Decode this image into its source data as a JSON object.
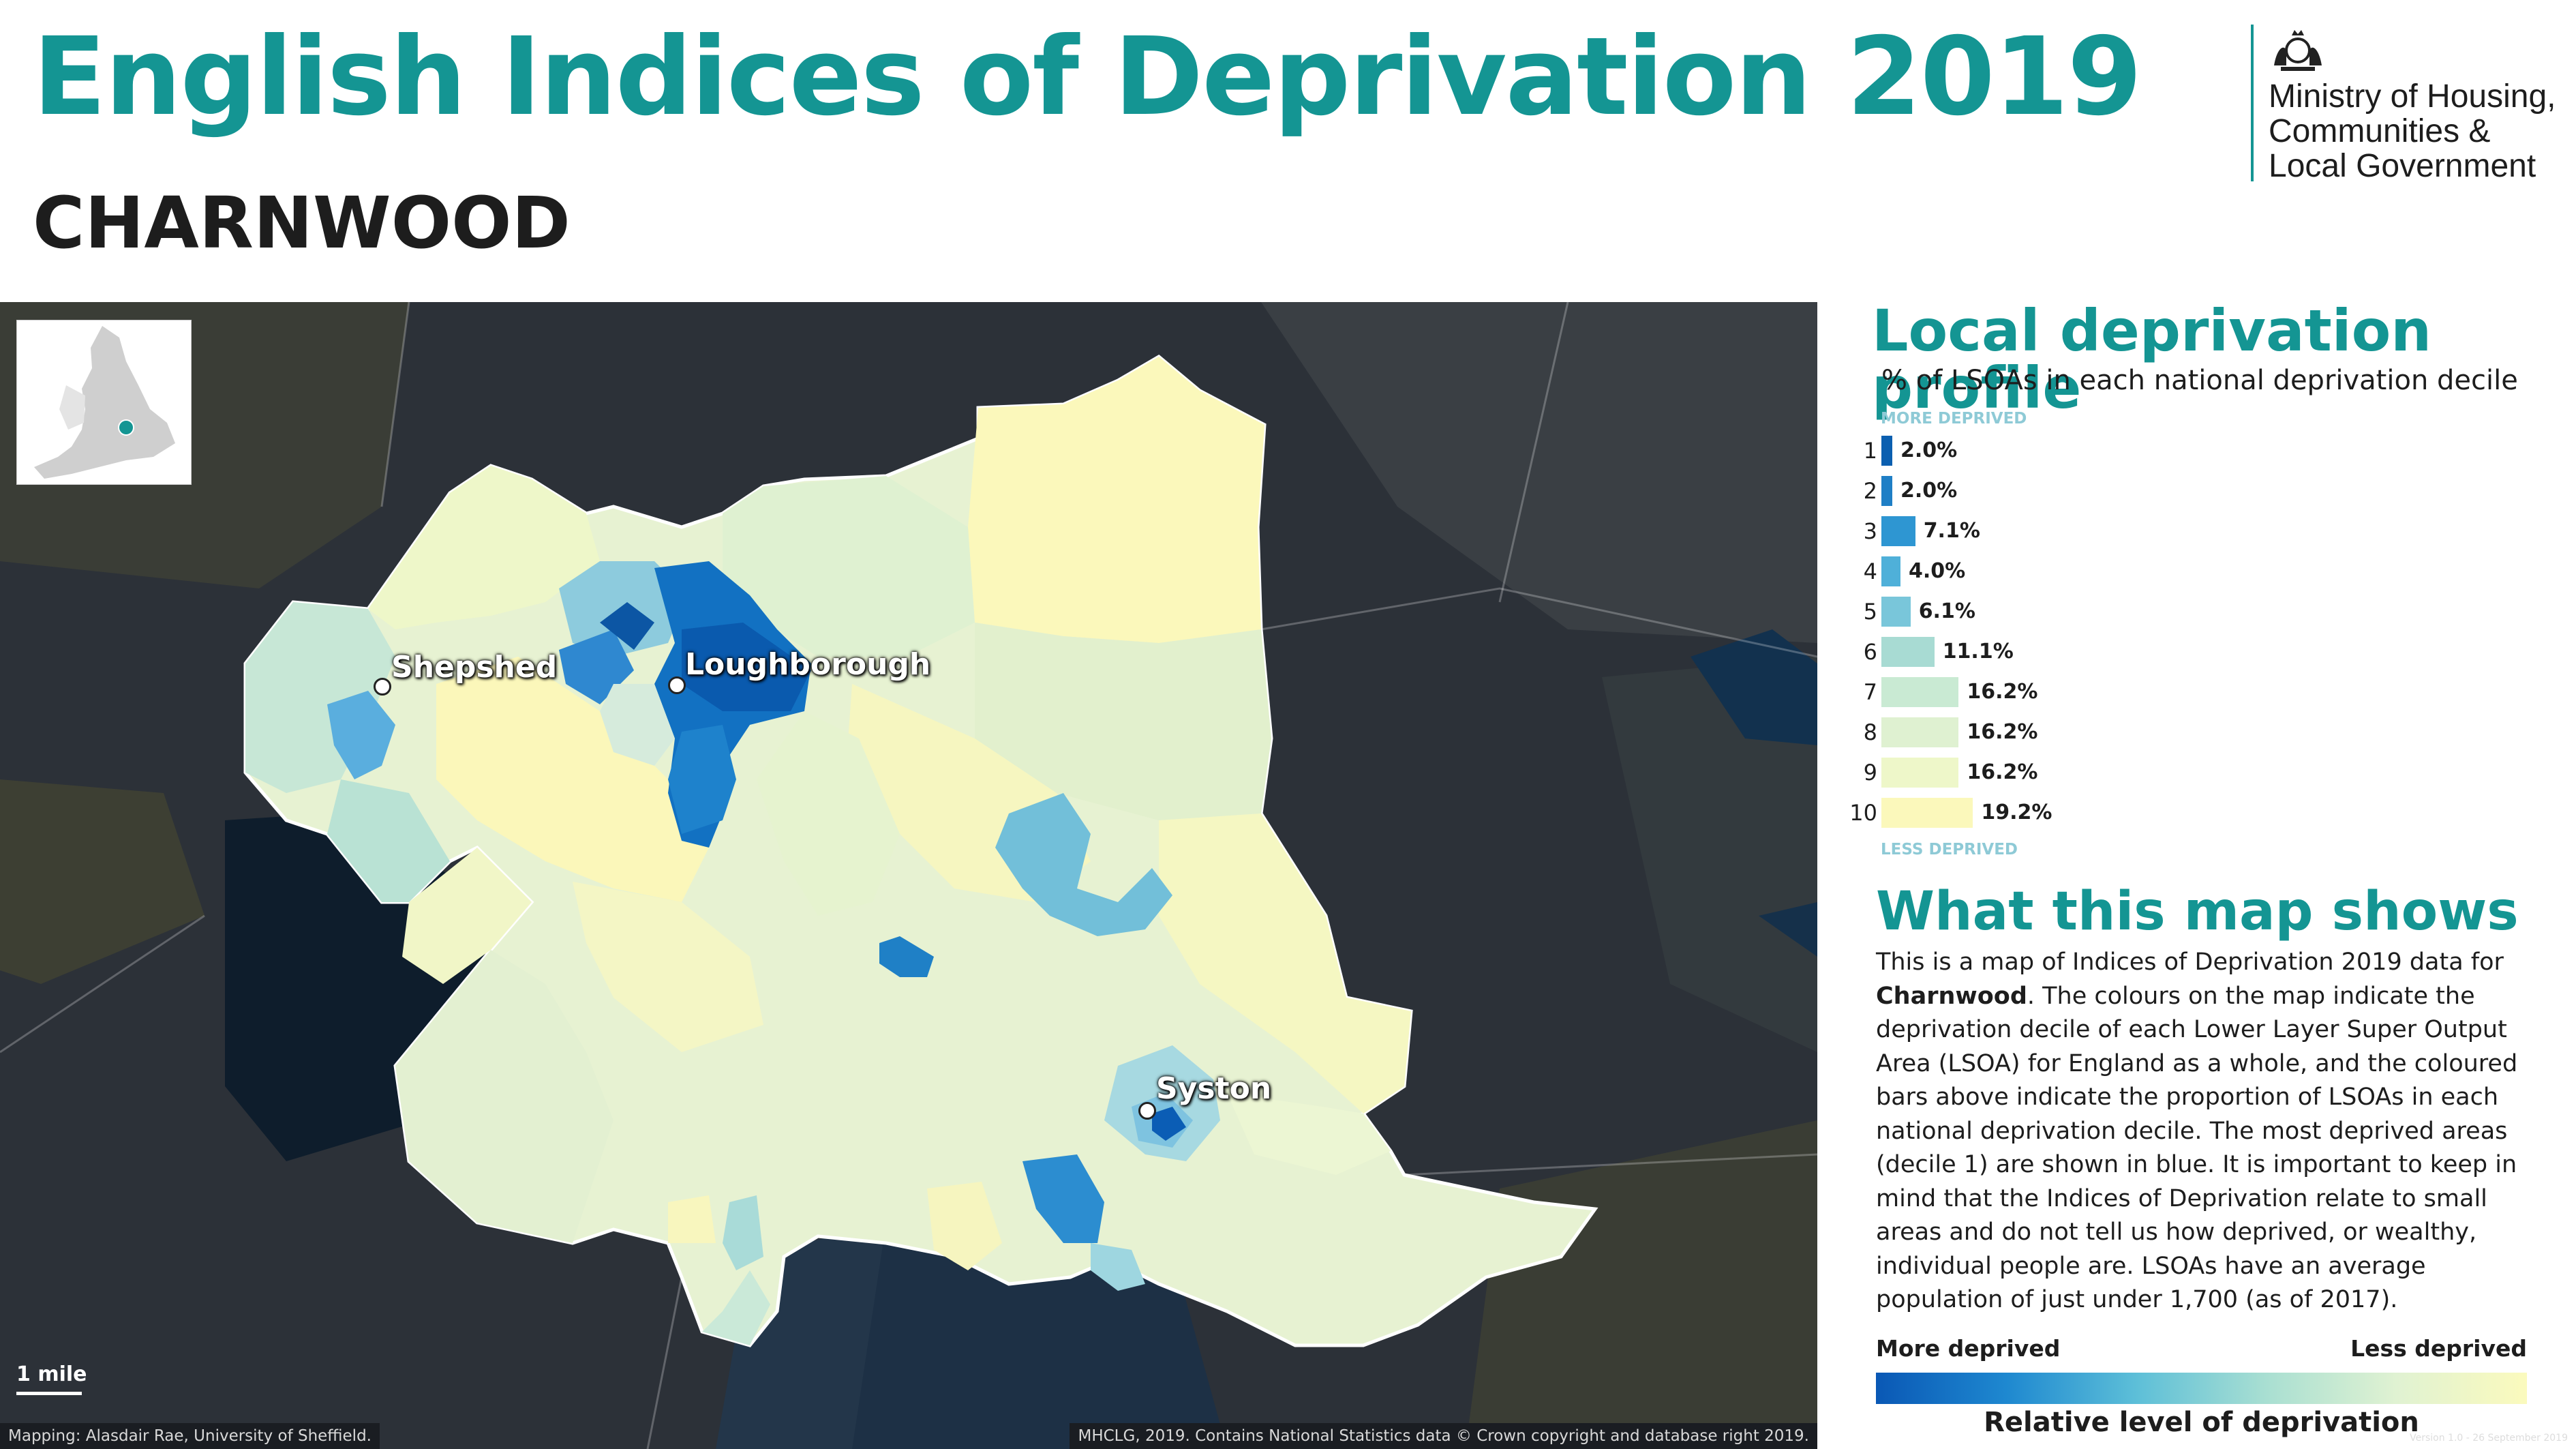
{
  "header": {
    "title": "English Indices of Deprivation 2019",
    "district": "CHARNWOOD",
    "org_lines": [
      "Ministry of Housing,",
      "Communities &",
      "Local Government"
    ]
  },
  "map": {
    "places": [
      {
        "name": "Shepshed"
      },
      {
        "name": "Loughborough"
      },
      {
        "name": "Syston"
      }
    ],
    "scale_label": "1 mile",
    "credit_left": "Mapping: Alasdair Rae, University of Sheffield.",
    "credit_right": "MHCLG, 2019. Contains National Statistics data © Crown copyright and database right 2019."
  },
  "profile": {
    "title": "Local deprivation profile",
    "subtitle": "% of LSOAs in each national deprivation decile",
    "more_label": "MORE DEPRIVED",
    "less_label": "LESS DEPRIVED",
    "deciles": [
      {
        "decile": "1",
        "label": "2.0%",
        "value": 2.0,
        "color": "#0b5fb0"
      },
      {
        "decile": "2",
        "label": "2.0%",
        "value": 2.0,
        "color": "#1f7fc6"
      },
      {
        "decile": "3",
        "label": "7.1%",
        "value": 7.1,
        "color": "#2e96d2"
      },
      {
        "decile": "4",
        "label": "4.0%",
        "value": 4.0,
        "color": "#4fb0d9"
      },
      {
        "decile": "5",
        "label": "6.1%",
        "value": 6.1,
        "color": "#79c6da"
      },
      {
        "decile": "6",
        "label": "11.1%",
        "value": 11.1,
        "color": "#a8dbd3"
      },
      {
        "decile": "7",
        "label": "16.2%",
        "value": 16.2,
        "color": "#c9ead3"
      },
      {
        "decile": "8",
        "label": "16.2%",
        "value": 16.2,
        "color": "#dff1d1"
      },
      {
        "decile": "9",
        "label": "16.2%",
        "value": 16.2,
        "color": "#eef7c9"
      },
      {
        "decile": "10",
        "label": "19.2%",
        "value": 19.2,
        "color": "#fbf8bb"
      }
    ]
  },
  "explainer": {
    "title": "What this map shows",
    "text_before": "This is a map of Indices of Deprivation 2019 data for ",
    "text_bold": "Charnwood",
    "text_after": ". The colours on the map indicate the deprivation decile of each Lower Layer Super Output Area (LSOA) for England as a whole, and the coloured bars above indicate the proportion of LSOAs in each national deprivation decile. The most deprived areas (decile 1) are shown in blue. It is important to keep in mind that the Indices of Deprivation relate to small areas and do not tell us how deprived, or wealthy, individual people are. LSOAs have an average population of just under 1,700 (as of 2017)."
  },
  "legend": {
    "more": "More deprived",
    "less": "Less deprived",
    "caption": "Relative level of deprivation"
  },
  "version": "Version 1.0 - 26 September 2019"
}
